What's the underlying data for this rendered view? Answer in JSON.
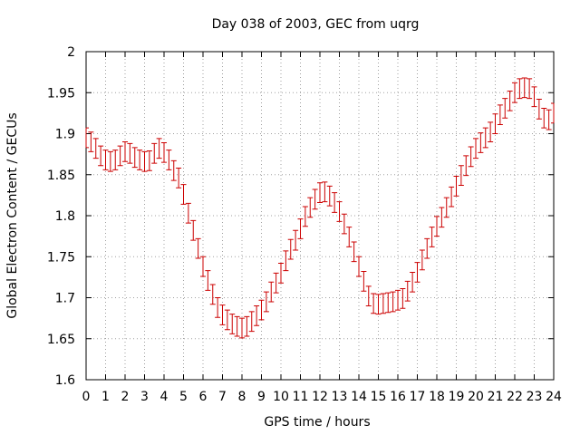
{
  "chart_data": {
    "type": "scatter",
    "title": "Day 038 of 2003, GEC from uqrg",
    "xlabel": "GPS time / hours",
    "ylabel": "Global Electron Content / GECUs",
    "xlim": [
      0,
      24
    ],
    "ylim": [
      1.6,
      2.0
    ],
    "xticks": [
      "0",
      "1",
      "2",
      "3",
      "4",
      "5",
      "6",
      "7",
      "8",
      "9",
      "10",
      "11",
      "12",
      "13",
      "14",
      "15",
      "16",
      "17",
      "18",
      "19",
      "20",
      "21",
      "22",
      "23",
      "24"
    ],
    "yticks": [
      "1.6",
      "1.65",
      "1.7",
      "1.75",
      "1.8",
      "1.85",
      "1.9",
      "1.95",
      "2"
    ],
    "grid": true,
    "error_bar": 0.012,
    "color": "#cc0000",
    "x": [
      0,
      0.25,
      0.5,
      0.75,
      1,
      1.25,
      1.5,
      1.75,
      2,
      2.25,
      2.5,
      2.75,
      3,
      3.25,
      3.5,
      3.75,
      4,
      4.25,
      4.5,
      4.75,
      5,
      5.25,
      5.5,
      5.75,
      6,
      6.25,
      6.5,
      6.75,
      7,
      7.25,
      7.5,
      7.75,
      8,
      8.25,
      8.5,
      8.75,
      9,
      9.25,
      9.5,
      9.75,
      10,
      10.25,
      10.5,
      10.75,
      11,
      11.25,
      11.5,
      11.75,
      12,
      12.25,
      12.5,
      12.75,
      13,
      13.25,
      13.5,
      13.75,
      14,
      14.25,
      14.5,
      14.75,
      15,
      15.25,
      15.5,
      15.75,
      16,
      16.25,
      16.5,
      16.75,
      17,
      17.25,
      17.5,
      17.75,
      18,
      18.25,
      18.5,
      18.75,
      19,
      19.25,
      19.5,
      19.75,
      20,
      20.25,
      20.5,
      20.75,
      21,
      21.25,
      21.5,
      21.75,
      22,
      22.25,
      22.5,
      22.75,
      23,
      23.25,
      23.5,
      23.75,
      24
    ],
    "y": [
      1.895,
      1.89,
      1.882,
      1.873,
      1.868,
      1.866,
      1.868,
      1.873,
      1.878,
      1.876,
      1.871,
      1.868,
      1.866,
      1.867,
      1.876,
      1.882,
      1.877,
      1.868,
      1.855,
      1.846,
      1.826,
      1.803,
      1.782,
      1.76,
      1.738,
      1.721,
      1.704,
      1.688,
      1.679,
      1.673,
      1.668,
      1.665,
      1.663,
      1.665,
      1.671,
      1.678,
      1.685,
      1.695,
      1.707,
      1.718,
      1.73,
      1.745,
      1.759,
      1.77,
      1.784,
      1.799,
      1.81,
      1.82,
      1.828,
      1.829,
      1.824,
      1.816,
      1.805,
      1.79,
      1.774,
      1.756,
      1.738,
      1.72,
      1.702,
      1.693,
      1.692,
      1.693,
      1.694,
      1.695,
      1.697,
      1.699,
      1.708,
      1.719,
      1.731,
      1.746,
      1.76,
      1.774,
      1.787,
      1.798,
      1.81,
      1.823,
      1.836,
      1.849,
      1.861,
      1.872,
      1.882,
      1.889,
      1.895,
      1.902,
      1.912,
      1.923,
      1.931,
      1.94,
      1.95,
      1.955,
      1.956,
      1.955,
      1.945,
      1.93,
      1.919,
      1.917,
      1.925
    ]
  }
}
